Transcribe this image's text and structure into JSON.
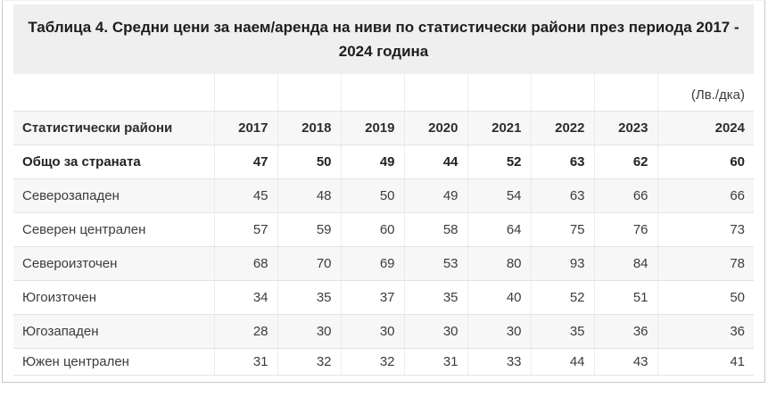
{
  "title": "Таблица 4. Средни цени за наем/аренда на ниви по статистически райони през периода 2017 - 2024 година",
  "chart_data": {
    "type": "table",
    "title": "Таблица 4. Средни цени за наем/аренда на ниви по статистически райони през периода 2017 - 2024 година",
    "unit": "(Лв./дка)",
    "columns": [
      "Статистически райони",
      "2017",
      "2018",
      "2019",
      "2020",
      "2021",
      "2022",
      "2023",
      "2024"
    ],
    "rows": [
      {
        "region": "Общо за страната",
        "bold": true,
        "values": [
          47,
          50,
          49,
          44,
          52,
          63,
          62,
          60
        ]
      },
      {
        "region": "Северозападен",
        "bold": false,
        "values": [
          45,
          48,
          50,
          49,
          54,
          63,
          66,
          66
        ]
      },
      {
        "region": "Северен централен",
        "bold": false,
        "values": [
          57,
          59,
          60,
          58,
          64,
          75,
          76,
          73
        ]
      },
      {
        "region": "Североизточен",
        "bold": false,
        "values": [
          68,
          70,
          69,
          53,
          80,
          93,
          84,
          78
        ]
      },
      {
        "region": "Югоизточен",
        "bold": false,
        "values": [
          34,
          35,
          37,
          35,
          40,
          52,
          51,
          50
        ]
      },
      {
        "region": "Югозападен",
        "bold": false,
        "values": [
          28,
          30,
          30,
          30,
          30,
          35,
          36,
          36
        ]
      },
      {
        "region": "Южен централен",
        "bold": false,
        "values": [
          31,
          32,
          32,
          31,
          33,
          44,
          43,
          41
        ]
      }
    ]
  },
  "colors": {
    "title_bg": "#efefef",
    "stripe_bg": "#f7f7f7",
    "row_border": "#e3e3e3",
    "outer_border": "#c9c9c9",
    "heading_text": "#1d1d1d",
    "cell_text": "#3c3c3c"
  }
}
